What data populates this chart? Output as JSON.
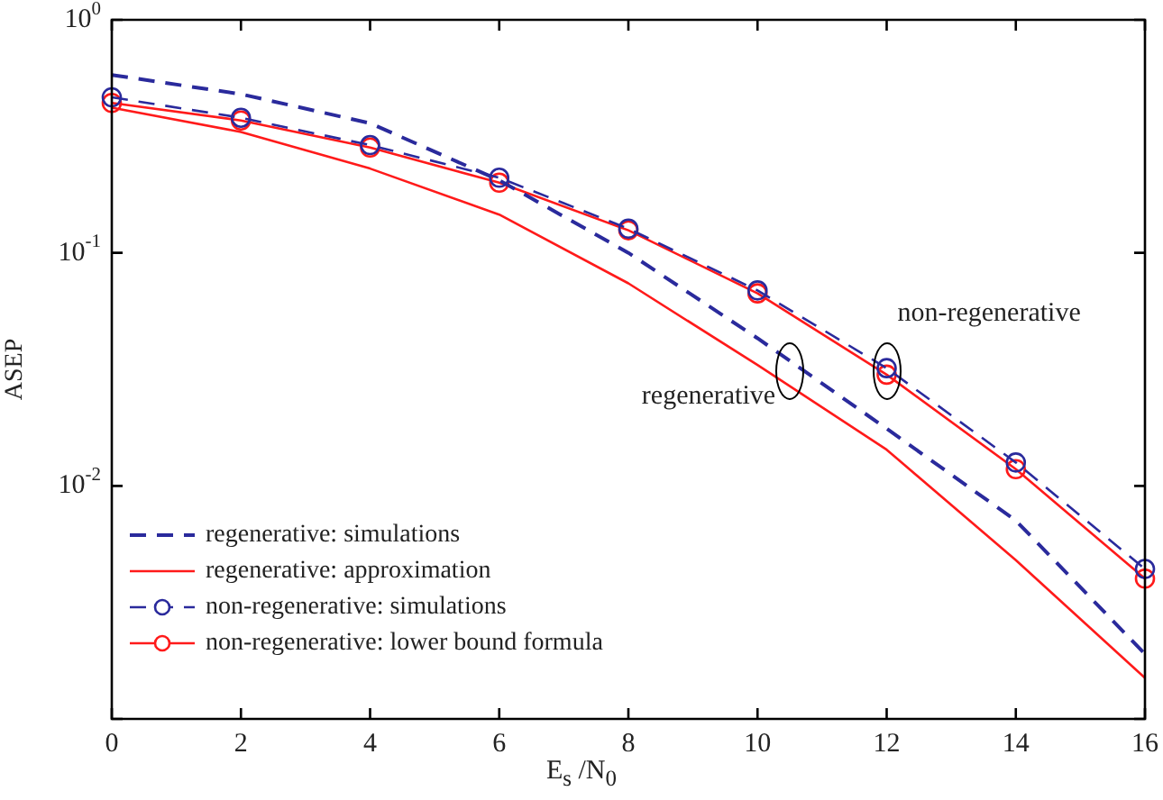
{
  "chart_data": {
    "type": "line",
    "xlabel": "E$_{s}$ /N$_{0}$",
    "ylabel": "ASEP",
    "x": [
      0,
      2,
      4,
      6,
      8,
      10,
      12,
      14,
      16
    ],
    "series": [
      {
        "name": "regenerative: simulations",
        "color": "#2a2a9c",
        "line_style": "dashed",
        "marker": "none",
        "values": [
          0.58,
          0.48,
          0.36,
          0.205,
          0.1,
          0.043,
          0.0176,
          0.0071,
          0.0019
        ]
      },
      {
        "name": "regenerative: approximation",
        "color": "#ff1a1a",
        "line_style": "solid",
        "marker": "none",
        "values": [
          0.42,
          0.33,
          0.23,
          0.146,
          0.074,
          0.033,
          0.0143,
          0.0048,
          0.0015
        ]
      },
      {
        "name": "non-regenerative: simulations",
        "color": "#2a2a9c",
        "line_style": "dashed",
        "marker": "circle",
        "values": [
          0.465,
          0.38,
          0.29,
          0.21,
          0.127,
          0.069,
          0.032,
          0.0126,
          0.0044
        ]
      },
      {
        "name": "non-regenerative: lower bound formula",
        "color": "#ff1a1a",
        "line_style": "solid",
        "marker": "circle",
        "values": [
          0.44,
          0.37,
          0.283,
          0.2,
          0.125,
          0.067,
          0.03,
          0.0118,
          0.004
        ]
      }
    ],
    "log": "y",
    "xlim": [
      0,
      16
    ],
    "xticks": [
      0,
      2,
      4,
      6,
      8,
      10,
      12,
      14,
      16
    ],
    "ylim": [
      0.001,
      1
    ],
    "yticks": [
      {
        "value": 1,
        "label": "10$^{0}$"
      },
      {
        "value": 0.1,
        "label": "10$^{-1}$"
      },
      {
        "value": 0.01,
        "label": "10$^{-2}$"
      },
      {
        "value": 0.001,
        "label": null
      }
    ],
    "grid": false,
    "legend": "bottom left",
    "annotations": [
      {
        "text": "regenerative",
        "x": 10.5,
        "y": 0.031
      },
      {
        "text": "non-regenerative",
        "x": 12,
        "y": 0.031
      }
    ]
  }
}
